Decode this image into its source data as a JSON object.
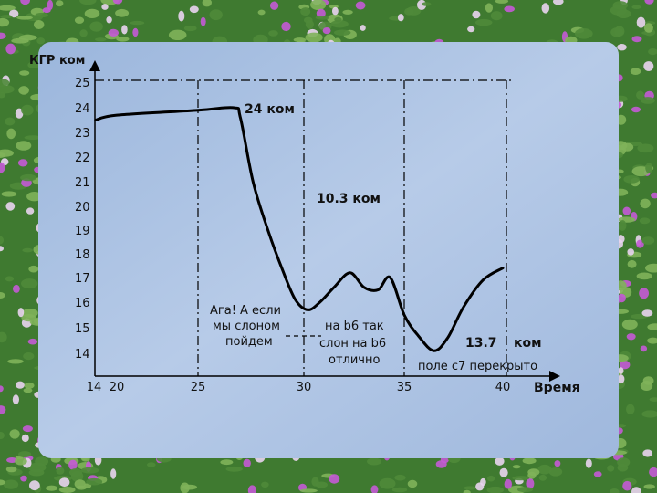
{
  "colors": {
    "background": "#a8c0e2",
    "frame_green": "#4f8a3a",
    "frame_flower": "#c45ad6",
    "line": "#000000"
  },
  "chart_data": {
    "type": "line",
    "title": "",
    "ylabel": "КГР ком",
    "xlabel": "Время",
    "xlim": [
      14,
      40.5
    ],
    "ylim": [
      13.7,
      25
    ],
    "x_tick_labels": [
      "14",
      "20",
      "25",
      "30",
      "35",
      "40"
    ],
    "y_tick_labels": [
      "14",
      "15",
      "16",
      "17",
      "18",
      "19",
      "20",
      "21",
      "22",
      "23",
      "24",
      "25"
    ],
    "grid": false,
    "series": [
      {
        "x": [
          14.2,
          20,
          25,
          26.7,
          27.0,
          27.6,
          28.3,
          29.0,
          29.6,
          30.2,
          30.8,
          31.5,
          32.3,
          33.0,
          33.7,
          34.3,
          35.0,
          35.7,
          36.5,
          37.2,
          38.0,
          39.0,
          40.0
        ],
        "y": [
          23.5,
          23.7,
          23.9,
          24.0,
          23.6,
          21.0,
          19.0,
          17.3,
          16.1,
          15.7,
          16.0,
          16.6,
          17.2,
          16.6,
          16.5,
          17.0,
          15.5,
          14.7,
          14.1,
          14.6,
          15.8,
          16.9,
          17.4
        ]
      }
    ],
    "vlines": [
      25,
      30,
      35,
      40
    ],
    "hline": {
      "y": 25,
      "x_from": 14.2,
      "x_to": 40
    },
    "annotations": {
      "a1": "24 ком",
      "a2": "10.3 ком",
      "a3": "13.7",
      "a4": "ком",
      "n1": "Ага! А если",
      "n2": "мы слоном",
      "n3": "пойдем",
      "n4": "на b6 так",
      "n5": "слон на b6",
      "n6": "отлично",
      "n7": "поле с7 перекрыто"
    }
  }
}
